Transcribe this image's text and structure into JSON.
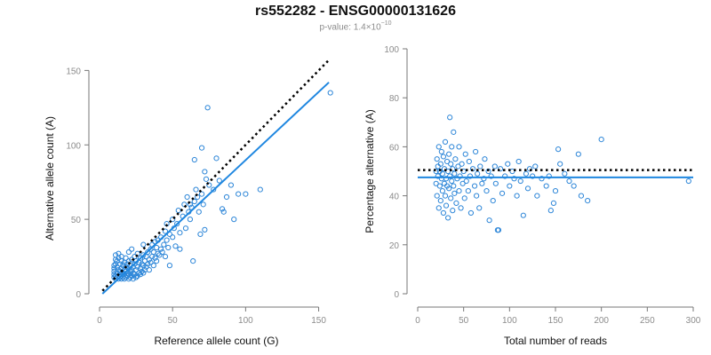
{
  "figure": {
    "title": "rs552282 - ENSG00000131626",
    "pvalue_prefix": "p-value: 1.4",
    "pvalue_times": "×",
    "pvalue_base": "10",
    "pvalue_exponent": "−10"
  },
  "colors": {
    "points": "#2d86d8",
    "fit_line": "#1f87e0",
    "reference_line": "#000000",
    "axes": "#777777",
    "tick_text": "#8c8c8c"
  },
  "chart_data": [
    {
      "type": "scatter",
      "xlabel": "Reference allele count (G)",
      "ylabel": "Alternative allele count (A)",
      "xlim": [
        0,
        160
      ],
      "ylim": [
        0,
        155
      ],
      "xticks": [
        "0",
        "50",
        "100",
        "150"
      ],
      "yticks": [
        "0",
        "50",
        "100",
        "150"
      ],
      "points": [
        [
          10,
          11
        ],
        [
          10,
          13
        ],
        [
          10,
          15
        ],
        [
          10,
          17
        ],
        [
          10,
          19
        ],
        [
          11,
          10
        ],
        [
          11,
          12
        ],
        [
          11,
          20
        ],
        [
          11,
          23
        ],
        [
          11,
          26
        ],
        [
          12,
          11
        ],
        [
          12,
          14
        ],
        [
          12,
          18
        ],
        [
          12,
          22
        ],
        [
          13,
          10
        ],
        [
          13,
          12
        ],
        [
          13,
          16
        ],
        [
          13,
          24
        ],
        [
          13,
          27
        ],
        [
          14,
          11
        ],
        [
          14,
          13
        ],
        [
          14,
          15
        ],
        [
          14,
          20
        ],
        [
          15,
          10
        ],
        [
          15,
          12
        ],
        [
          15,
          17
        ],
        [
          15,
          22
        ],
        [
          15,
          25
        ],
        [
          16,
          11
        ],
        [
          16,
          14
        ],
        [
          16,
          19
        ],
        [
          17,
          10
        ],
        [
          17,
          13
        ],
        [
          17,
          16
        ],
        [
          17,
          21
        ],
        [
          18,
          11
        ],
        [
          18,
          15
        ],
        [
          18,
          18
        ],
        [
          18,
          24
        ],
        [
          19,
          12
        ],
        [
          19,
          14
        ],
        [
          19,
          20
        ],
        [
          20,
          10
        ],
        [
          20,
          13
        ],
        [
          20,
          17
        ],
        [
          20,
          22
        ],
        [
          20,
          28
        ],
        [
          21,
          11
        ],
        [
          21,
          15
        ],
        [
          21,
          19
        ],
        [
          22,
          12
        ],
        [
          22,
          16
        ],
        [
          22,
          23
        ],
        [
          22,
          30
        ],
        [
          23,
          10
        ],
        [
          23,
          14
        ],
        [
          23,
          18
        ],
        [
          24,
          13
        ],
        [
          24,
          20
        ],
        [
          24,
          25
        ],
        [
          25,
          11
        ],
        [
          25,
          16
        ],
        [
          25,
          22
        ],
        [
          26,
          12
        ],
        [
          26,
          18
        ],
        [
          26,
          27
        ],
        [
          27,
          14
        ],
        [
          27,
          21
        ],
        [
          28,
          13
        ],
        [
          28,
          17
        ],
        [
          28,
          24
        ],
        [
          29,
          15
        ],
        [
          29,
          20
        ],
        [
          30,
          14
        ],
        [
          30,
          19
        ],
        [
          30,
          26
        ],
        [
          30,
          33
        ],
        [
          31,
          16
        ],
        [
          31,
          22
        ],
        [
          32,
          18
        ],
        [
          32,
          25
        ],
        [
          33,
          20
        ],
        [
          33,
          28
        ],
        [
          34,
          16
        ],
        [
          34,
          23
        ],
        [
          35,
          21
        ],
        [
          35,
          30
        ],
        [
          36,
          25
        ],
        [
          36,
          33
        ],
        [
          37,
          19
        ],
        [
          37,
          28
        ],
        [
          38,
          24
        ],
        [
          38,
          35
        ],
        [
          39,
          22
        ],
        [
          39,
          31
        ],
        [
          40,
          27
        ],
        [
          40,
          36
        ],
        [
          41,
          26
        ],
        [
          42,
          30
        ],
        [
          42,
          38
        ],
        [
          43,
          28
        ],
        [
          44,
          33
        ],
        [
          45,
          42
        ],
        [
          45,
          25
        ],
        [
          46,
          36
        ],
        [
          46,
          47
        ],
        [
          47,
          31
        ],
        [
          48,
          40
        ],
        [
          48,
          19
        ],
        [
          50,
          38
        ],
        [
          50,
          50
        ],
        [
          51,
          44
        ],
        [
          52,
          32
        ],
        [
          53,
          47
        ],
        [
          54,
          56
        ],
        [
          55,
          41
        ],
        [
          55,
          30
        ],
        [
          57,
          52
        ],
        [
          58,
          60
        ],
        [
          59,
          44
        ],
        [
          60,
          65
        ],
        [
          61,
          55
        ],
        [
          62,
          50
        ],
        [
          62,
          60
        ],
        [
          63,
          58
        ],
        [
          64,
          22
        ],
        [
          65,
          90
        ],
        [
          65,
          62
        ],
        [
          66,
          70
        ],
        [
          67,
          65
        ],
        [
          68,
          55
        ],
        [
          69,
          40
        ],
        [
          70,
          98
        ],
        [
          70,
          67
        ],
        [
          71,
          60
        ],
        [
          72,
          82
        ],
        [
          72,
          43
        ],
        [
          73,
          77
        ],
        [
          74,
          125
        ],
        [
          75,
          73
        ],
        [
          78,
          70
        ],
        [
          80,
          91
        ],
        [
          82,
          76
        ],
        [
          84,
          57
        ],
        [
          85,
          55
        ],
        [
          87,
          65
        ],
        [
          90,
          73
        ],
        [
          92,
          50
        ],
        [
          95,
          67
        ],
        [
          100,
          67
        ],
        [
          110,
          70
        ],
        [
          158,
          135
        ]
      ],
      "fit_line": {
        "from": [
          2,
          0
        ],
        "to": [
          157,
          142
        ]
      },
      "reference_line": {
        "from": [
          2,
          2
        ],
        "to": [
          157,
          157
        ]
      }
    },
    {
      "type": "scatter",
      "xlabel": "Total number of reads",
      "ylabel": "Percentage alternative (A)",
      "xlim": [
        0,
        300
      ],
      "ylim": [
        0,
        100
      ],
      "xticks": [
        "0",
        "50",
        "100",
        "150",
        "200",
        "250",
        "300"
      ],
      "yticks": [
        "0",
        "20",
        "40",
        "60",
        "80",
        "100"
      ],
      "points": [
        [
          20,
          50
        ],
        [
          20,
          45
        ],
        [
          21,
          55
        ],
        [
          21,
          40
        ],
        [
          22,
          48
        ],
        [
          22,
          52
        ],
        [
          23,
          35
        ],
        [
          23,
          60
        ],
        [
          24,
          44
        ],
        [
          24,
          50
        ],
        [
          25,
          53
        ],
        [
          25,
          38
        ],
        [
          26,
          47
        ],
        [
          26,
          58
        ],
        [
          27,
          42
        ],
        [
          27,
          49
        ],
        [
          28,
          33
        ],
        [
          28,
          56
        ],
        [
          29,
          45
        ],
        [
          29,
          51
        ],
        [
          30,
          40
        ],
        [
          30,
          62
        ],
        [
          31,
          47
        ],
        [
          31,
          36
        ],
        [
          32,
          54
        ],
        [
          32,
          44
        ],
        [
          33,
          50
        ],
        [
          33,
          31
        ],
        [
          34,
          57
        ],
        [
          34,
          43
        ],
        [
          35,
          48
        ],
        [
          35,
          72
        ],
        [
          36,
          39
        ],
        [
          36,
          53
        ],
        [
          37,
          46
        ],
        [
          37,
          60
        ],
        [
          38,
          34
        ],
        [
          38,
          51
        ],
        [
          39,
          44
        ],
        [
          39,
          66
        ],
        [
          40,
          49
        ],
        [
          40,
          41
        ],
        [
          41,
          55
        ],
        [
          42,
          37
        ],
        [
          43,
          47
        ],
        [
          44,
          52
        ],
        [
          45,
          42
        ],
        [
          45,
          60
        ],
        [
          46,
          48
        ],
        [
          47,
          35
        ],
        [
          48,
          53
        ],
        [
          49,
          45
        ],
        [
          50,
          50
        ],
        [
          51,
          39
        ],
        [
          52,
          57
        ],
        [
          53,
          46
        ],
        [
          55,
          42
        ],
        [
          56,
          54
        ],
        [
          57,
          48
        ],
        [
          58,
          33
        ],
        [
          60,
          51
        ],
        [
          62,
          44
        ],
        [
          63,
          58
        ],
        [
          64,
          40
        ],
        [
          65,
          49
        ],
        [
          67,
          35
        ],
        [
          68,
          52
        ],
        [
          70,
          45
        ],
        [
          72,
          47
        ],
        [
          73,
          55
        ],
        [
          75,
          42
        ],
        [
          77,
          50
        ],
        [
          78,
          30
        ],
        [
          80,
          48
        ],
        [
          82,
          38
        ],
        [
          84,
          52
        ],
        [
          85,
          45
        ],
        [
          87,
          26
        ],
        [
          88,
          26
        ],
        [
          90,
          51
        ],
        [
          92,
          41
        ],
        [
          95,
          48
        ],
        [
          98,
          53
        ],
        [
          100,
          44
        ],
        [
          103,
          50
        ],
        [
          105,
          47
        ],
        [
          108,
          40
        ],
        [
          110,
          54
        ],
        [
          112,
          46
        ],
        [
          115,
          32
        ],
        [
          118,
          49
        ],
        [
          120,
          43
        ],
        [
          122,
          51
        ],
        [
          125,
          48
        ],
        [
          128,
          52
        ],
        [
          130,
          40
        ],
        [
          135,
          47
        ],
        [
          140,
          44
        ],
        [
          143,
          48
        ],
        [
          145,
          34
        ],
        [
          148,
          37
        ],
        [
          150,
          42
        ],
        [
          153,
          59
        ],
        [
          155,
          53
        ],
        [
          160,
          49
        ],
        [
          165,
          46
        ],
        [
          170,
          44
        ],
        [
          175,
          57
        ],
        [
          178,
          40
        ],
        [
          185,
          38
        ],
        [
          200,
          63
        ],
        [
          295,
          46
        ]
      ],
      "fit_line": {
        "y": 47.5
      },
      "reference_line": {
        "y": 50.5
      }
    }
  ]
}
